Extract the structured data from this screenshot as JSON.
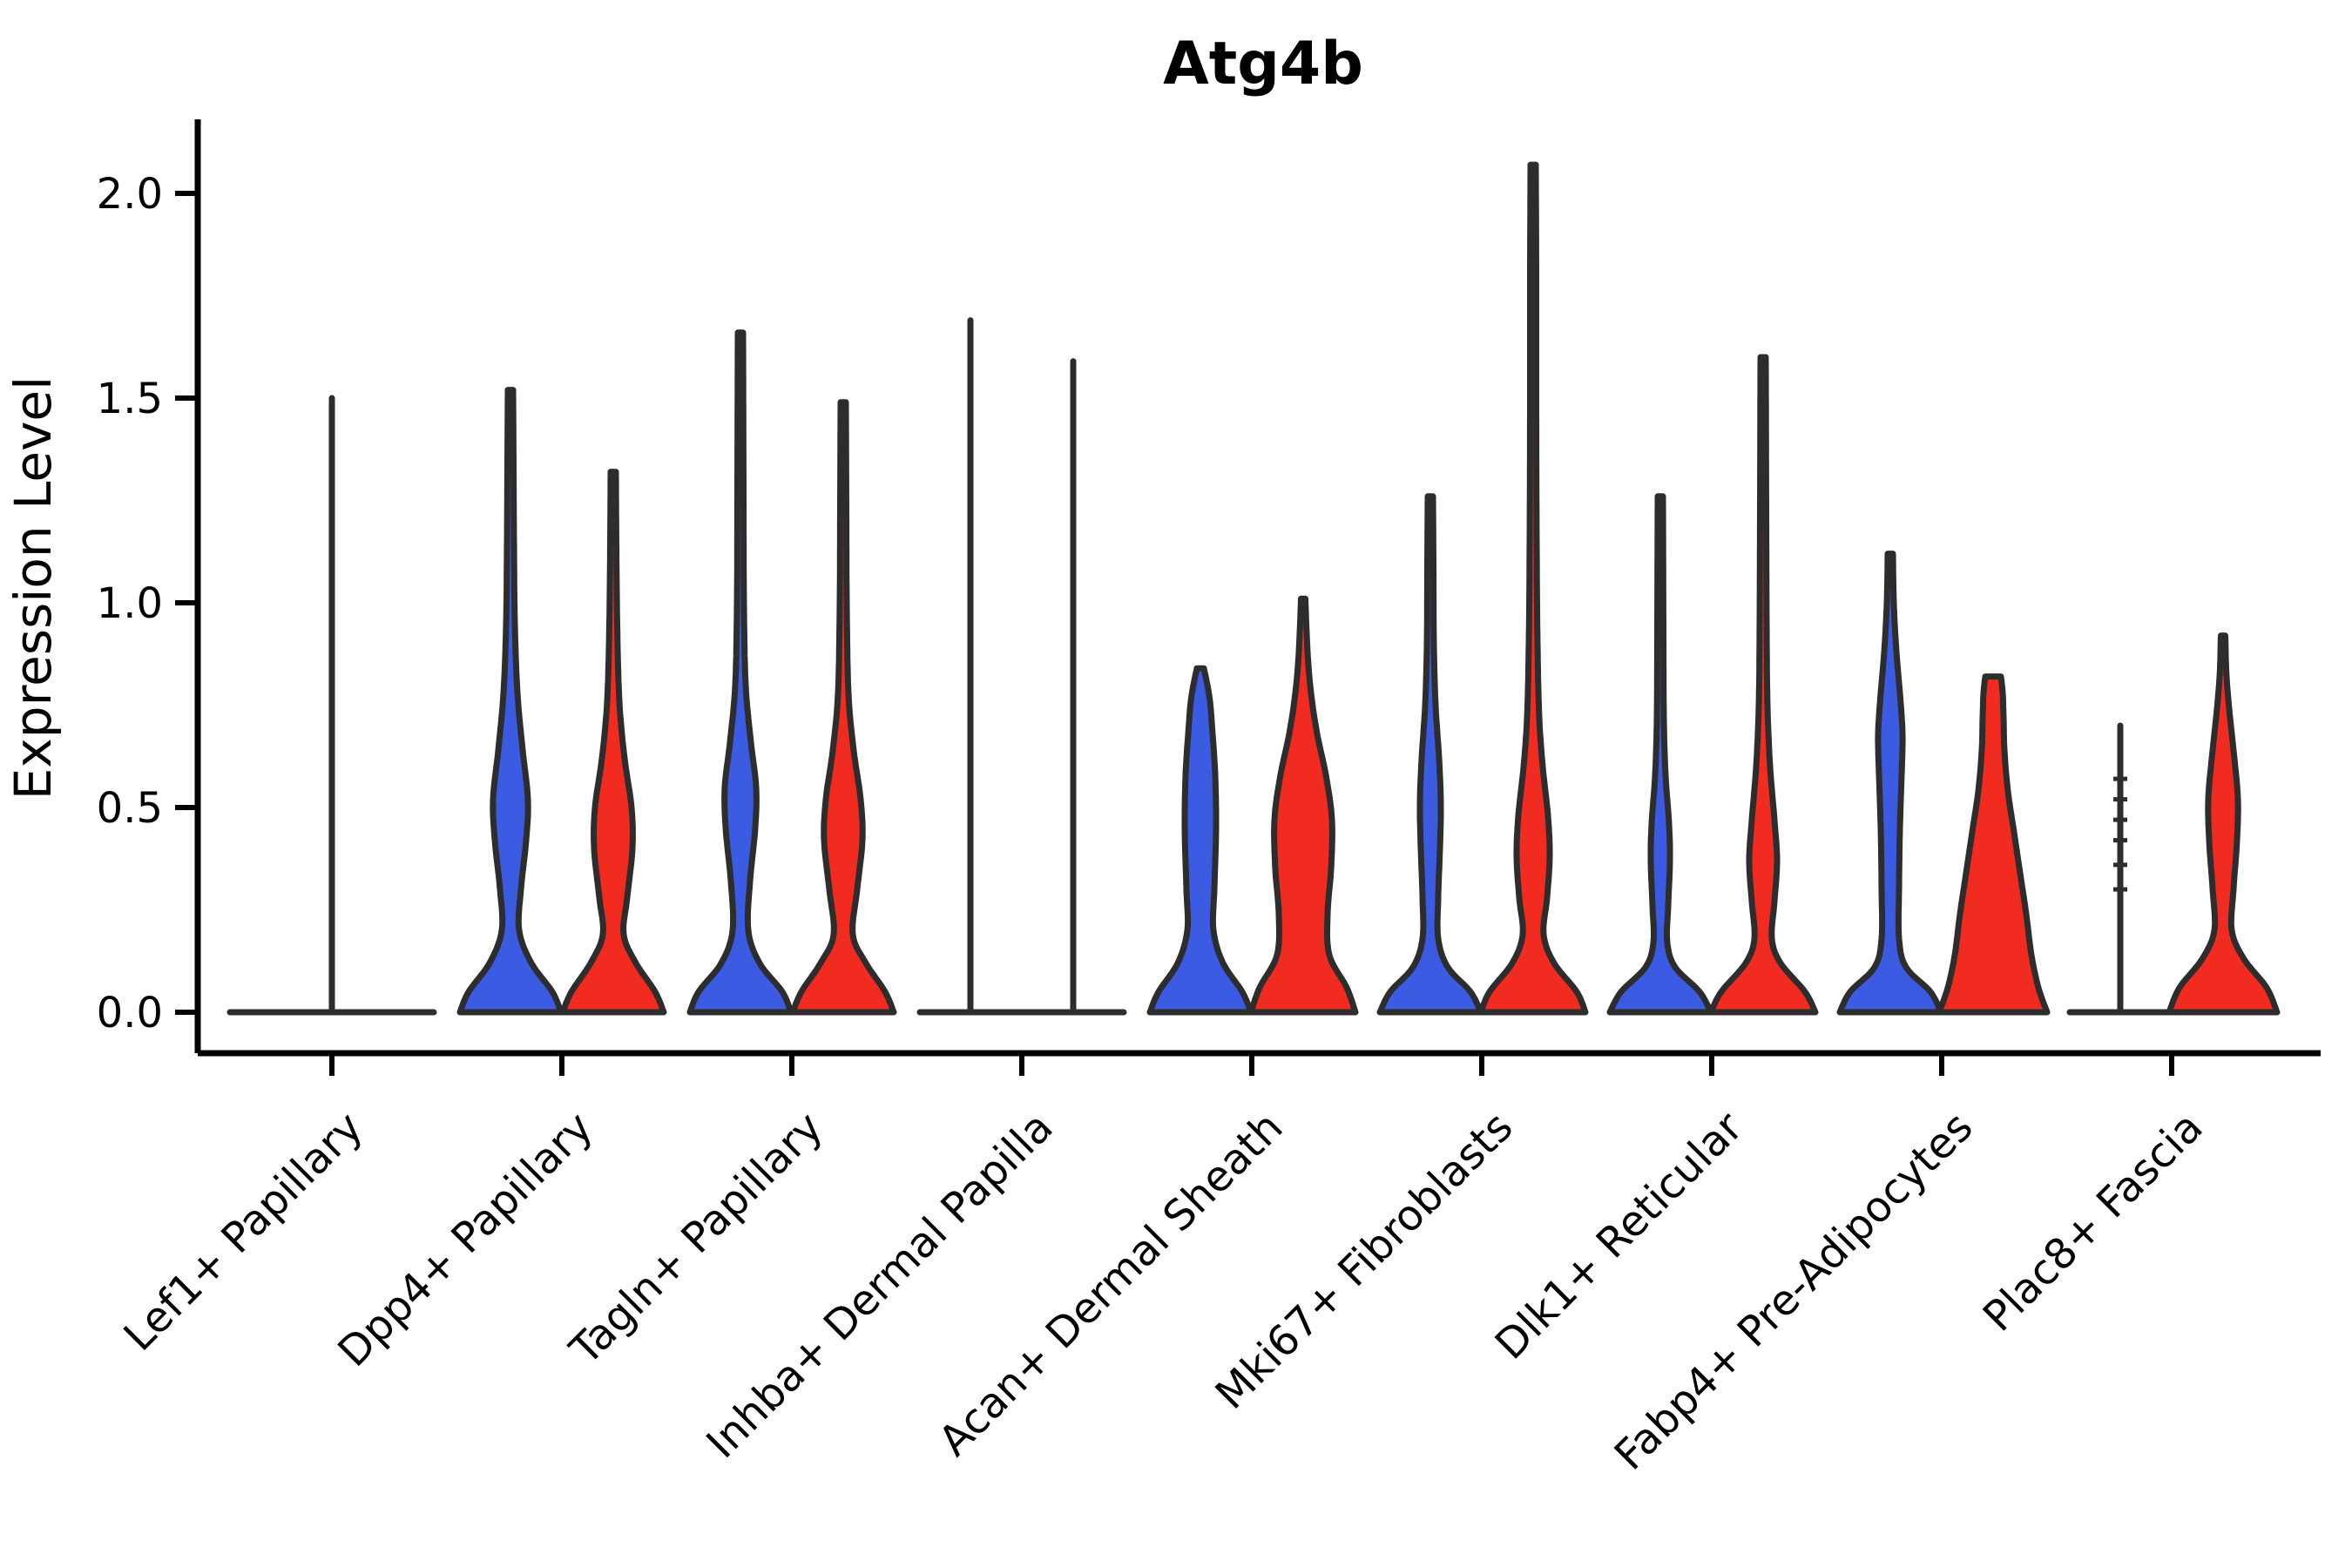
{
  "chart_data": {
    "type": "violin",
    "title": "Atg4b",
    "ylabel": "Expression Level",
    "yticks": [
      {
        "value": 0.0,
        "label": "0.0"
      },
      {
        "value": 0.5,
        "label": "0.5"
      },
      {
        "value": 1.0,
        "label": "1.0"
      },
      {
        "value": 1.5,
        "label": "1.5"
      },
      {
        "value": 2.0,
        "label": "2.0"
      }
    ],
    "ylim": [
      -0.1,
      2.2
    ],
    "grid": false,
    "legend": null,
    "colors": {
      "blue": "#3C5BE3",
      "red": "#F12B20",
      "edge": "#2d2d2d",
      "axis": "#000000"
    },
    "categories": [
      "Lef1+ Papillary",
      "Dpp4+ Papillary",
      "Tagln+ Papillary",
      "Inhba+ Dermal Papilla",
      "Acan+ Dermal Sheath",
      "Mki67+ Fibroblasts",
      "Dlk1+ Reticular",
      "Fabp4+ Pre-Adipocytes",
      "Plac8+ Fascia"
    ],
    "series_summary": {
      "note": "two violins per category (blue = left, red = right); collapsed flat violins are drawn as thin vertical lines over a flat baseline at 0",
      "blue_max_expression": [
        1.5,
        1.52,
        1.66,
        1.69,
        0.84,
        1.26,
        1.26,
        1.12,
        0.7
      ],
      "red_max_expression": [
        null,
        1.32,
        1.49,
        1.59,
        1.01,
        2.07,
        1.6,
        0.82,
        0.92
      ]
    },
    "violins": [
      {
        "cat_index": 0,
        "side": "center",
        "style": "line",
        "series": "edge",
        "max": 1.5,
        "stubs": []
      },
      {
        "cat_index": 1,
        "side": "left",
        "style": "violin",
        "series": "blue",
        "max": 1.52,
        "profile": [
          [
            0,
            58
          ],
          [
            0.05,
            48
          ],
          [
            0.12,
            24
          ],
          [
            0.2,
            10
          ],
          [
            0.3,
            12
          ],
          [
            0.42,
            18
          ],
          [
            0.52,
            20
          ],
          [
            0.64,
            14
          ],
          [
            0.78,
            8
          ],
          [
            0.95,
            5
          ],
          [
            1.15,
            4
          ],
          [
            1.35,
            3.5
          ],
          [
            1.52,
            3
          ]
        ]
      },
      {
        "cat_index": 1,
        "side": "right",
        "style": "violin",
        "series": "red",
        "max": 1.32,
        "profile": [
          [
            0,
            58
          ],
          [
            0.05,
            48
          ],
          [
            0.12,
            26
          ],
          [
            0.19,
            12
          ],
          [
            0.28,
            16
          ],
          [
            0.4,
            22
          ],
          [
            0.5,
            21
          ],
          [
            0.62,
            13
          ],
          [
            0.76,
            7
          ],
          [
            0.95,
            4.5
          ],
          [
            1.15,
            3.5
          ],
          [
            1.32,
            3
          ]
        ]
      },
      {
        "cat_index": 2,
        "side": "left",
        "style": "violin",
        "series": "blue",
        "max": 1.66,
        "profile": [
          [
            0,
            58
          ],
          [
            0.05,
            48
          ],
          [
            0.12,
            22
          ],
          [
            0.2,
            9
          ],
          [
            0.32,
            11
          ],
          [
            0.45,
            17
          ],
          [
            0.55,
            18
          ],
          [
            0.66,
            12
          ],
          [
            0.8,
            6
          ],
          [
            1.0,
            4
          ],
          [
            1.3,
            3.5
          ],
          [
            1.66,
            3
          ]
        ]
      },
      {
        "cat_index": 2,
        "side": "right",
        "style": "violin",
        "series": "red",
        "max": 1.49,
        "profile": [
          [
            0,
            58
          ],
          [
            0.05,
            48
          ],
          [
            0.12,
            26
          ],
          [
            0.19,
            11
          ],
          [
            0.3,
            16
          ],
          [
            0.42,
            22
          ],
          [
            0.52,
            20
          ],
          [
            0.64,
            12
          ],
          [
            0.78,
            6
          ],
          [
            1.0,
            4
          ],
          [
            1.25,
            3.5
          ],
          [
            1.49,
            3
          ]
        ]
      },
      {
        "cat_index": 3,
        "side": "left",
        "style": "line",
        "series": "edge",
        "max": 1.69,
        "stubs": []
      },
      {
        "cat_index": 3,
        "side": "right",
        "style": "line",
        "series": "edge",
        "max": 1.59,
        "stubs": []
      },
      {
        "cat_index": 4,
        "side": "left",
        "style": "violin",
        "series": "blue",
        "max": 0.84,
        "profile": [
          [
            0,
            58
          ],
          [
            0.05,
            48
          ],
          [
            0.12,
            26
          ],
          [
            0.2,
            15
          ],
          [
            0.3,
            16
          ],
          [
            0.45,
            18
          ],
          [
            0.58,
            17
          ],
          [
            0.68,
            14
          ],
          [
            0.76,
            11
          ],
          [
            0.81,
            7
          ],
          [
            0.84,
            4
          ]
        ]
      },
      {
        "cat_index": 4,
        "side": "right",
        "style": "violin",
        "series": "red",
        "max": 1.01,
        "profile": [
          [
            0,
            60
          ],
          [
            0.06,
            50
          ],
          [
            0.14,
            30
          ],
          [
            0.24,
            28
          ],
          [
            0.35,
            32
          ],
          [
            0.47,
            33
          ],
          [
            0.58,
            26
          ],
          [
            0.68,
            16
          ],
          [
            0.78,
            9
          ],
          [
            0.88,
            5
          ],
          [
            1.01,
            2.5
          ]
        ]
      },
      {
        "cat_index": 5,
        "side": "left",
        "style": "violin",
        "series": "blue",
        "max": 1.26,
        "profile": [
          [
            0,
            58
          ],
          [
            0.05,
            46
          ],
          [
            0.11,
            20
          ],
          [
            0.18,
            9
          ],
          [
            0.28,
            9
          ],
          [
            0.4,
            11
          ],
          [
            0.51,
            12
          ],
          [
            0.62,
            10
          ],
          [
            0.75,
            6
          ],
          [
            0.9,
            4
          ],
          [
            1.1,
            3.5
          ],
          [
            1.26,
            3
          ]
        ]
      },
      {
        "cat_index": 5,
        "side": "right",
        "style": "violin",
        "series": "red",
        "max": 2.07,
        "profile": [
          [
            0,
            60
          ],
          [
            0.05,
            50
          ],
          [
            0.12,
            24
          ],
          [
            0.19,
            12
          ],
          [
            0.28,
            16
          ],
          [
            0.38,
            19
          ],
          [
            0.48,
            17
          ],
          [
            0.6,
            11
          ],
          [
            0.72,
            7
          ],
          [
            0.9,
            5
          ],
          [
            1.15,
            4
          ],
          [
            1.5,
            3.5
          ],
          [
            1.8,
            3.5
          ],
          [
            2.07,
            3
          ]
        ]
      },
      {
        "cat_index": 6,
        "side": "left",
        "style": "violin",
        "series": "blue",
        "max": 1.26,
        "profile": [
          [
            0,
            58
          ],
          [
            0.05,
            45
          ],
          [
            0.11,
            17
          ],
          [
            0.17,
            8
          ],
          [
            0.26,
            9
          ],
          [
            0.37,
            11
          ],
          [
            0.46,
            10
          ],
          [
            0.58,
            6
          ],
          [
            0.72,
            4
          ],
          [
            0.95,
            3.5
          ],
          [
            1.26,
            3
          ]
        ]
      },
      {
        "cat_index": 6,
        "side": "right",
        "style": "violin",
        "series": "red",
        "max": 1.6,
        "profile": [
          [
            0,
            60
          ],
          [
            0.05,
            48
          ],
          [
            0.12,
            20
          ],
          [
            0.18,
            10
          ],
          [
            0.27,
            13
          ],
          [
            0.37,
            16
          ],
          [
            0.47,
            13
          ],
          [
            0.6,
            8
          ],
          [
            0.75,
            5
          ],
          [
            0.95,
            4
          ],
          [
            1.25,
            3.5
          ],
          [
            1.6,
            3
          ]
        ]
      },
      {
        "cat_index": 7,
        "side": "left",
        "style": "violin",
        "series": "blue",
        "max": 1.12,
        "profile": [
          [
            0,
            58
          ],
          [
            0.05,
            46
          ],
          [
            0.11,
            18
          ],
          [
            0.18,
            10
          ],
          [
            0.3,
            10
          ],
          [
            0.45,
            11
          ],
          [
            0.58,
            13
          ],
          [
            0.68,
            14
          ],
          [
            0.78,
            11
          ],
          [
            0.88,
            7
          ],
          [
            1.0,
            4
          ],
          [
            1.12,
            3
          ]
        ]
      },
      {
        "cat_index": 7,
        "side": "right",
        "style": "violin",
        "series": "red",
        "max": 0.82,
        "profile": [
          [
            0,
            62
          ],
          [
            0.06,
            52
          ],
          [
            0.14,
            44
          ],
          [
            0.24,
            38
          ],
          [
            0.34,
            31
          ],
          [
            0.44,
            24
          ],
          [
            0.54,
            17
          ],
          [
            0.64,
            13
          ],
          [
            0.72,
            12
          ],
          [
            0.78,
            11
          ],
          [
            0.82,
            9
          ]
        ]
      },
      {
        "cat_index": 8,
        "side": "left",
        "style": "line",
        "series": "edge",
        "max": 0.7,
        "stubs": [
          0.3,
          0.36,
          0.42,
          0.47,
          0.52,
          0.57
        ]
      },
      {
        "cat_index": 8,
        "side": "right",
        "style": "violin",
        "series": "red",
        "max": 0.92,
        "profile": [
          [
            0,
            62
          ],
          [
            0.06,
            50
          ],
          [
            0.13,
            24
          ],
          [
            0.2,
            10
          ],
          [
            0.3,
            12
          ],
          [
            0.42,
            16
          ],
          [
            0.52,
            17
          ],
          [
            0.62,
            13
          ],
          [
            0.72,
            8
          ],
          [
            0.82,
            4
          ],
          [
            0.92,
            2.5
          ]
        ]
      }
    ],
    "baselines": [
      {
        "cat_index": 0,
        "from": -117,
        "to": 117
      },
      {
        "cat_index": 3,
        "from": -117,
        "to": 117
      },
      {
        "cat_index": 8,
        "from": -117,
        "to": -2
      }
    ]
  }
}
